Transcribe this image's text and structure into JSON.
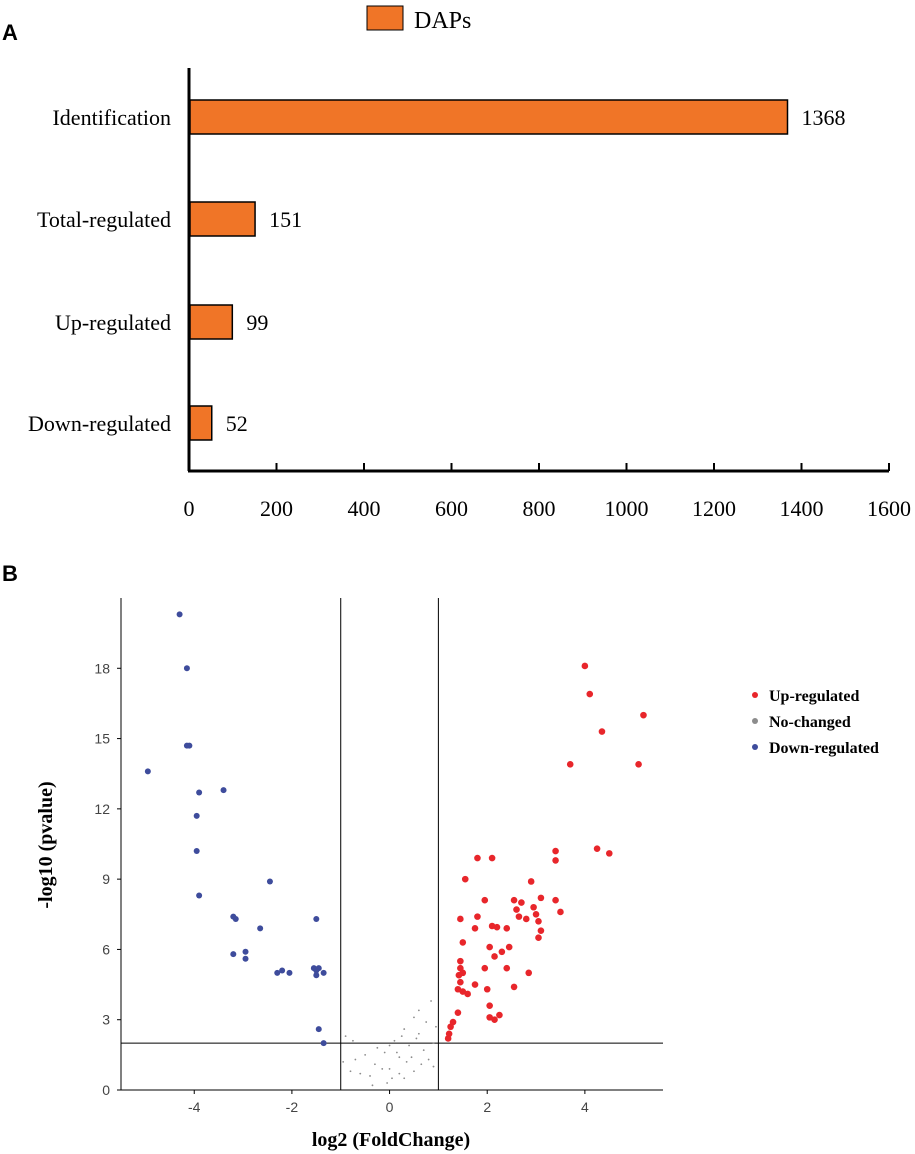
{
  "colors": {
    "bar_fill": "#f07527",
    "up": "#e8262b",
    "no_change": "#8c8c8c",
    "down": "#3e4c9c",
    "axis": "#000000"
  },
  "chart_data": [
    {
      "panel": "A",
      "type": "bar",
      "orientation": "horizontal",
      "legend": "DAPs",
      "categories": [
        "Identification",
        "Total-regulated",
        "Up-regulated",
        "Down-regulated"
      ],
      "values": [
        1368,
        151,
        99,
        52
      ],
      "value_labels": [
        "1368",
        "151",
        "99",
        "52"
      ],
      "xlim": [
        0,
        1600
      ],
      "xticks": [
        0,
        200,
        400,
        600,
        800,
        1000,
        1200,
        1400,
        1600
      ],
      "xtick_labels": [
        "0",
        "200",
        "400",
        "600",
        "800",
        "1000",
        "1200",
        "1400",
        "1600"
      ]
    },
    {
      "panel": "B",
      "type": "scatter",
      "title": "",
      "xlabel": "log2 (FoldChange)",
      "ylabel": "-log10 (pvalue)",
      "xlim": [
        -5.5,
        5.6
      ],
      "ylim": [
        0,
        21
      ],
      "xticks": [
        -4,
        -2,
        0,
        2,
        4
      ],
      "xtick_labels": [
        "-4",
        "-2",
        "0",
        "2",
        "4"
      ],
      "yticks": [
        0,
        3,
        6,
        9,
        12,
        15,
        18
      ],
      "ytick_labels": [
        "0",
        "3",
        "6",
        "9",
        "12",
        "15",
        "18"
      ],
      "thresholds": {
        "fc": [
          -1,
          1
        ],
        "p": 2
      },
      "series": [
        {
          "name": "Up-regulated",
          "points": [
            [
              4.0,
              18.1
            ],
            [
              4.1,
              16.9
            ],
            [
              5.2,
              16.0
            ],
            [
              4.35,
              15.3
            ],
            [
              3.7,
              13.9
            ],
            [
              5.1,
              13.9
            ],
            [
              4.25,
              10.3
            ],
            [
              4.5,
              10.1
            ],
            [
              3.4,
              10.2
            ],
            [
              3.4,
              9.8
            ],
            [
              1.55,
              9.0
            ],
            [
              1.8,
              9.9
            ],
            [
              2.1,
              9.9
            ],
            [
              2.9,
              8.9
            ],
            [
              2.55,
              8.1
            ],
            [
              2.7,
              8.0
            ],
            [
              3.1,
              8.2
            ],
            [
              3.4,
              8.1
            ],
            [
              1.95,
              8.1
            ],
            [
              1.45,
              7.3
            ],
            [
              1.8,
              7.4
            ],
            [
              2.2,
              6.95
            ],
            [
              2.1,
              7.0
            ],
            [
              2.4,
              6.9
            ],
            [
              2.8,
              7.3
            ],
            [
              2.95,
              7.8
            ],
            [
              3.0,
              7.5
            ],
            [
              3.05,
              7.2
            ],
            [
              3.1,
              6.8
            ],
            [
              3.05,
              6.5
            ],
            [
              3.5,
              7.6
            ],
            [
              2.6,
              7.7
            ],
            [
              2.65,
              7.4
            ],
            [
              1.5,
              6.3
            ],
            [
              1.75,
              6.9
            ],
            [
              2.05,
              6.1
            ],
            [
              2.45,
              6.1
            ],
            [
              2.4,
              5.2
            ],
            [
              2.15,
              5.7
            ],
            [
              1.95,
              5.2
            ],
            [
              2.3,
              5.9
            ],
            [
              2.85,
              5.0
            ],
            [
              1.45,
              5.5
            ],
            [
              1.45,
              5.2
            ],
            [
              1.42,
              4.9
            ],
            [
              1.45,
              4.6
            ],
            [
              1.4,
              4.3
            ],
            [
              1.5,
              4.2
            ],
            [
              1.6,
              4.1
            ],
            [
              1.75,
              4.5
            ],
            [
              2.0,
              4.3
            ],
            [
              2.55,
              4.4
            ],
            [
              2.05,
              3.6
            ],
            [
              1.4,
              3.3
            ],
            [
              1.3,
              2.9
            ],
            [
              1.25,
              2.7
            ],
            [
              1.22,
              2.4
            ],
            [
              1.2,
              2.2
            ],
            [
              2.25,
              3.2
            ],
            [
              2.05,
              3.1
            ],
            [
              1.5,
              5.0
            ],
            [
              2.15,
              3.0
            ]
          ]
        },
        {
          "name": "No-changed",
          "points": [
            [
              -0.95,
              1.2
            ],
            [
              -0.8,
              0.8
            ],
            [
              -0.6,
              0.7
            ],
            [
              -0.3,
              1.1
            ],
            [
              -0.1,
              1.6
            ],
            [
              0.0,
              1.9
            ],
            [
              0.1,
              2.1
            ],
            [
              0.2,
              1.4
            ],
            [
              0.3,
              2.6
            ],
            [
              0.4,
              1.9
            ],
            [
              0.5,
              3.1
            ],
            [
              0.6,
              2.4
            ],
            [
              0.7,
              1.7
            ],
            [
              0.8,
              1.3
            ],
            [
              0.9,
              2.0
            ],
            [
              0.85,
              3.8
            ],
            [
              0.75,
              2.9
            ],
            [
              0.65,
              1.1
            ],
            [
              0.5,
              0.8
            ],
            [
              0.35,
              1.2
            ],
            [
              0.2,
              0.7
            ],
            [
              0.05,
              0.5
            ],
            [
              -0.05,
              0.3
            ],
            [
              -0.15,
              0.9
            ],
            [
              -0.25,
              1.8
            ],
            [
              -0.4,
              0.6
            ],
            [
              -0.5,
              1.5
            ],
            [
              -0.7,
              1.3
            ],
            [
              -0.9,
              2.3
            ],
            [
              0.15,
              1.6
            ],
            [
              0.45,
              1.4
            ],
            [
              0.55,
              2.2
            ],
            [
              0.95,
              2.7
            ],
            [
              0.3,
              0.5
            ],
            [
              -0.35,
              0.2
            ],
            [
              0.0,
              0.9
            ],
            [
              0.6,
              3.4
            ],
            [
              0.9,
              1.0
            ],
            [
              -0.75,
              2.1
            ],
            [
              0.25,
              2.3
            ]
          ]
        },
        {
          "name": "Down-regulated",
          "points": [
            [
              -4.3,
              20.3
            ],
            [
              -4.15,
              18.0
            ],
            [
              -4.15,
              14.7
            ],
            [
              -4.1,
              14.7
            ],
            [
              -4.95,
              13.6
            ],
            [
              -3.4,
              12.8
            ],
            [
              -3.9,
              12.7
            ],
            [
              -3.95,
              11.7
            ],
            [
              -3.95,
              10.2
            ],
            [
              -3.9,
              8.3
            ],
            [
              -2.45,
              8.9
            ],
            [
              -3.2,
              7.4
            ],
            [
              -3.15,
              7.3
            ],
            [
              -2.65,
              6.9
            ],
            [
              -1.5,
              7.3
            ],
            [
              -3.2,
              5.8
            ],
            [
              -2.95,
              5.9
            ],
            [
              -2.95,
              5.6
            ],
            [
              -2.3,
              5.0
            ],
            [
              -2.2,
              5.1
            ],
            [
              -2.05,
              5.0
            ],
            [
              -1.55,
              5.2
            ],
            [
              -1.5,
              5.1
            ],
            [
              -1.45,
              5.2
            ],
            [
              -1.35,
              5.0
            ],
            [
              -1.45,
              2.6
            ],
            [
              -1.35,
              2.0
            ],
            [
              -1.5,
              4.9
            ]
          ]
        }
      ]
    }
  ],
  "panelA": {
    "label": "A"
  },
  "panelB": {
    "label": "B"
  },
  "legendB": {
    "items": [
      "Up-regulated",
      "No-changed",
      "Down-regulated"
    ]
  }
}
